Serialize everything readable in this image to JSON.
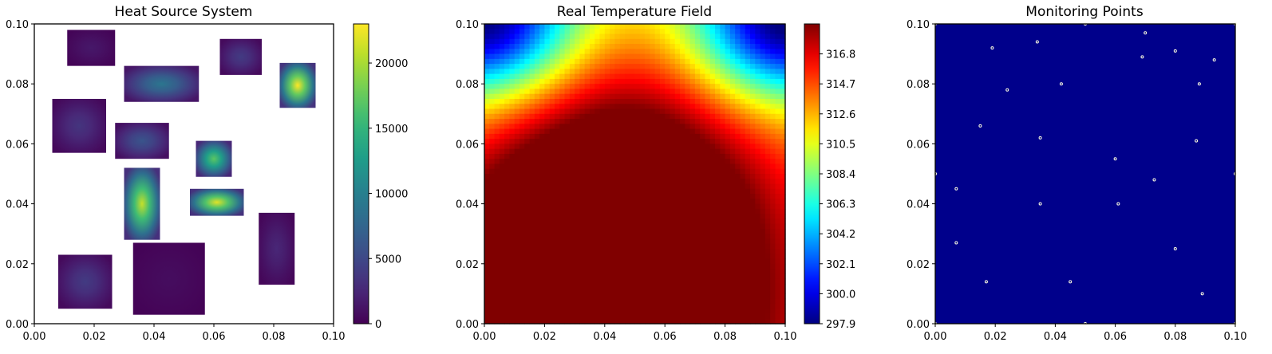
{
  "chart_data": [
    {
      "type": "heatmap",
      "title": "Heat Source System",
      "xlabel": "",
      "ylabel": "",
      "xlim": [
        0,
        0.1
      ],
      "ylim": [
        0,
        0.1
      ],
      "x_ticks": [
        "0.00",
        "0.02",
        "0.04",
        "0.06",
        "0.08",
        "0.10"
      ],
      "y_ticks": [
        "0.00",
        "0.02",
        "0.04",
        "0.06",
        "0.08",
        "0.10"
      ],
      "colormap": "viridis",
      "colorbar": {
        "range": [
          0,
          23000
        ],
        "ticks": [
          "0",
          "5000",
          "10000",
          "15000",
          "20000"
        ],
        "tick_values": [
          0,
          5000,
          10000,
          15000,
          20000
        ]
      },
      "heat_sources": [
        {
          "x": [
            0.011,
            0.027
          ],
          "y": [
            0.086,
            0.098
          ],
          "peak_power": 1500
        },
        {
          "x": [
            0.03,
            0.055
          ],
          "y": [
            0.074,
            0.086
          ],
          "peak_power": 9000
        },
        {
          "x": [
            0.062,
            0.076
          ],
          "y": [
            0.083,
            0.095
          ],
          "peak_power": 4000
        },
        {
          "x": [
            0.082,
            0.094
          ],
          "y": [
            0.072,
            0.087
          ],
          "peak_power": 23000
        },
        {
          "x": [
            0.006,
            0.024
          ],
          "y": [
            0.057,
            0.075
          ],
          "peak_power": 3500
        },
        {
          "x": [
            0.027,
            0.045
          ],
          "y": [
            0.055,
            0.067
          ],
          "peak_power": 6000
        },
        {
          "x": [
            0.054,
            0.066
          ],
          "y": [
            0.049,
            0.061
          ],
          "peak_power": 17000
        },
        {
          "x": [
            0.03,
            0.042
          ],
          "y": [
            0.028,
            0.052
          ],
          "peak_power": 21000
        },
        {
          "x": [
            0.052,
            0.07
          ],
          "y": [
            0.036,
            0.045
          ],
          "peak_power": 22000
        },
        {
          "x": [
            0.075,
            0.087
          ],
          "y": [
            0.013,
            0.037
          ],
          "peak_power": 2500
        },
        {
          "x": [
            0.008,
            0.026
          ],
          "y": [
            0.005,
            0.023
          ],
          "peak_power": 4000
        },
        {
          "x": [
            0.033,
            0.057
          ],
          "y": [
            0.003,
            0.027
          ],
          "peak_power": 800
        }
      ]
    },
    {
      "type": "heatmap",
      "title": "Real Temperature Field",
      "xlabel": "",
      "ylabel": "",
      "xlim": [
        0,
        0.1
      ],
      "ylim": [
        0,
        0.1
      ],
      "x_ticks": [
        "0.00",
        "0.02",
        "0.04",
        "0.06",
        "0.08",
        "0.10"
      ],
      "y_ticks": [
        "0.00",
        "0.02",
        "0.04",
        "0.06",
        "0.08",
        "0.10"
      ],
      "colormap": "jet",
      "colorbar": {
        "range": [
          297.9,
          318.9
        ],
        "ticks": [
          "297.9",
          "300.0",
          "302.1",
          "304.2",
          "306.3",
          "308.4",
          "310.5",
          "312.6",
          "314.7",
          "316.8"
        ],
        "tick_values": [
          297.9,
          300.0,
          302.1,
          304.2,
          306.3,
          308.4,
          310.5,
          312.6,
          314.7,
          316.8
        ]
      },
      "field": {
        "min": 297.9,
        "max": 318.9,
        "hot_spots": [
          {
            "x": 0.038,
            "y": 0.03,
            "temp": 318.9
          },
          {
            "x": 0.02,
            "y": 0.005,
            "temp": 318.5
          },
          {
            "x": 0.065,
            "y": 0.03,
            "temp": 318.0
          }
        ],
        "cold_spots": [
          {
            "x": 0.0,
            "y": 0.1,
            "temp": 297.9
          },
          {
            "x": 0.1,
            "y": 0.1,
            "temp": 297.9
          }
        ]
      }
    },
    {
      "type": "scatter",
      "title": "Monitoring Points",
      "xlabel": "",
      "ylabel": "",
      "xlim": [
        0,
        0.1
      ],
      "ylim": [
        0,
        0.1
      ],
      "x_ticks": [
        "0.00",
        "0.02",
        "0.04",
        "0.06",
        "0.08",
        "0.10"
      ],
      "y_ticks": [
        "0.00",
        "0.02",
        "0.04",
        "0.06",
        "0.08",
        "0.10"
      ],
      "background_color": "#00008b",
      "marker_color": "#ffffe0",
      "points": [
        [
          0.05,
          0.1
        ],
        [
          0.07,
          0.097
        ],
        [
          0.034,
          0.094
        ],
        [
          0.019,
          0.092
        ],
        [
          0.08,
          0.091
        ],
        [
          0.069,
          0.089
        ],
        [
          0.093,
          0.088
        ],
        [
          0.042,
          0.08
        ],
        [
          0.088,
          0.08
        ],
        [
          0.024,
          0.078
        ],
        [
          0.015,
          0.066
        ],
        [
          0.035,
          0.062
        ],
        [
          0.087,
          0.061
        ],
        [
          0.06,
          0.055
        ],
        [
          0.0,
          0.05
        ],
        [
          0.1,
          0.05
        ],
        [
          0.073,
          0.048
        ],
        [
          0.007,
          0.045
        ],
        [
          0.035,
          0.04
        ],
        [
          0.061,
          0.04
        ],
        [
          0.007,
          0.027
        ],
        [
          0.08,
          0.025
        ],
        [
          0.017,
          0.014
        ],
        [
          0.045,
          0.014
        ],
        [
          0.089,
          0.01
        ],
        [
          0.0,
          0.0
        ],
        [
          0.05,
          0.0
        ],
        [
          0.1,
          0.0
        ],
        [
          0.0,
          0.1
        ],
        [
          0.1,
          0.1
        ]
      ]
    }
  ]
}
